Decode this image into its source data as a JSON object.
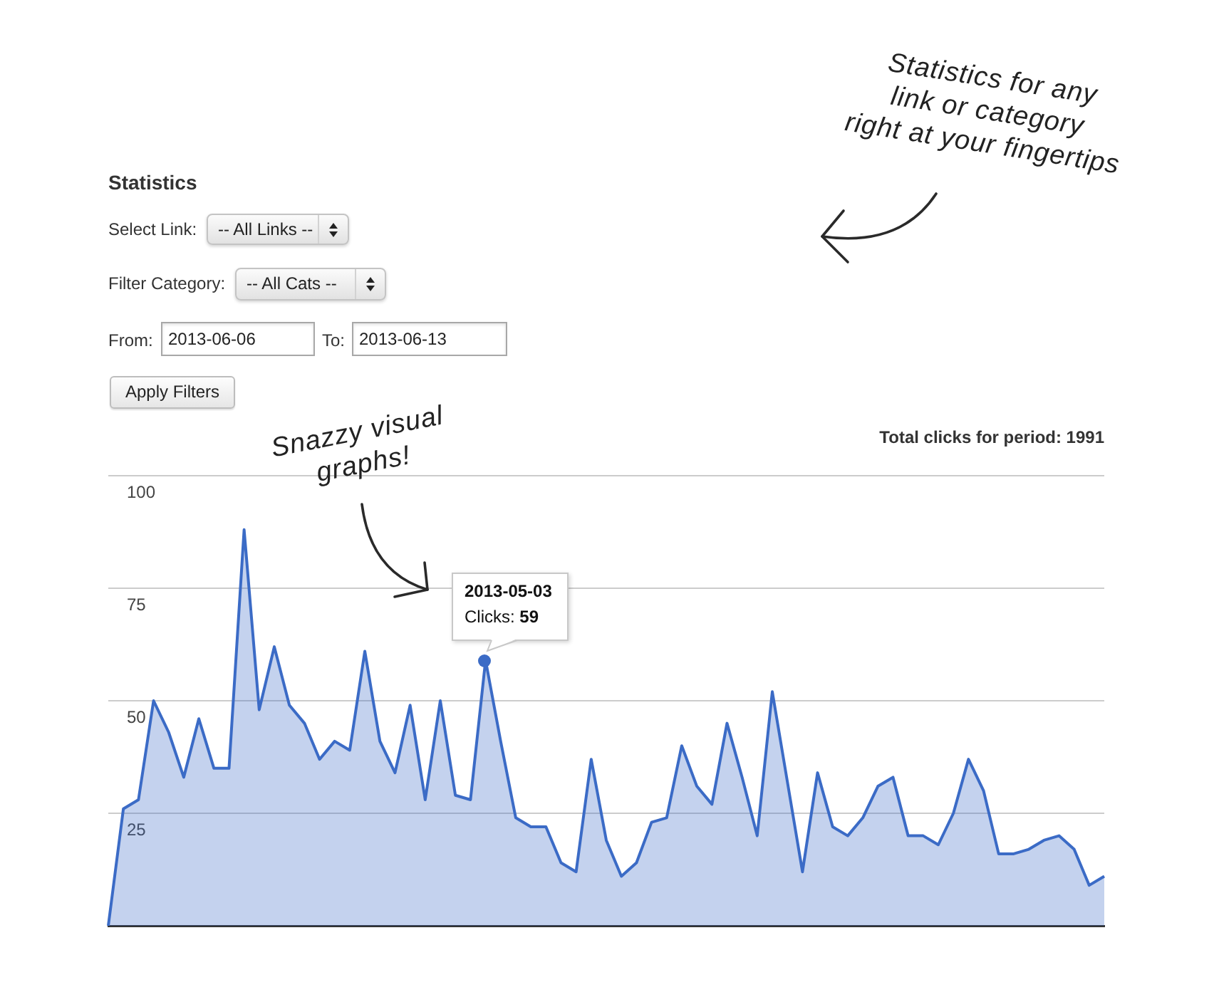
{
  "chart_data": {
    "type": "area",
    "title": "Statistics",
    "categories": [
      null,
      null,
      null,
      null,
      null,
      null,
      null,
      null,
      null,
      null,
      null,
      null,
      null,
      null,
      null,
      null,
      null,
      null,
      null,
      null,
      null,
      null,
      null,
      null,
      null,
      null,
      null,
      null,
      null,
      null,
      null,
      null,
      null,
      null,
      null,
      null,
      null,
      null,
      null,
      null,
      null,
      null,
      null,
      null,
      null,
      null,
      null,
      null,
      null,
      null,
      null,
      null,
      null,
      null,
      null,
      null,
      null,
      null,
      null,
      null,
      null,
      null,
      null,
      null,
      null,
      null,
      null
    ],
    "values": [
      0,
      26,
      28,
      50,
      43,
      33,
      46,
      35,
      35,
      88,
      48,
      62,
      49,
      45,
      37,
      41,
      39,
      61,
      41,
      34,
      49,
      28,
      50,
      29,
      28,
      59,
      41,
      24,
      22,
      22,
      14,
      12,
      37,
      19,
      11,
      14,
      23,
      24,
      40,
      31,
      27,
      45,
      33,
      20,
      52,
      32,
      12,
      34,
      22,
      20,
      24,
      31,
      33,
      20,
      20,
      18,
      25,
      37,
      30,
      16,
      16,
      17,
      19,
      20,
      17,
      9,
      11
    ],
    "color": "#3b6bc6",
    "ylim": [
      0,
      100
    ],
    "yticks": [
      25,
      50,
      75,
      100
    ],
    "grid": "y",
    "tick_labels": "y",
    "annotations": [
      "Select Link:",
      "-- All Links --",
      "Filter Category:",
      "-- All Cats --",
      "From:",
      "2013-06-06",
      "To:",
      "2013-06-13",
      "Apply Filters",
      "Total clicks for period: 1991",
      "Statistics for any link or category right at your fingertips",
      "Snazzy visual graphs!",
      "2013-05-03\nClicks: 59"
    ]
  }
}
